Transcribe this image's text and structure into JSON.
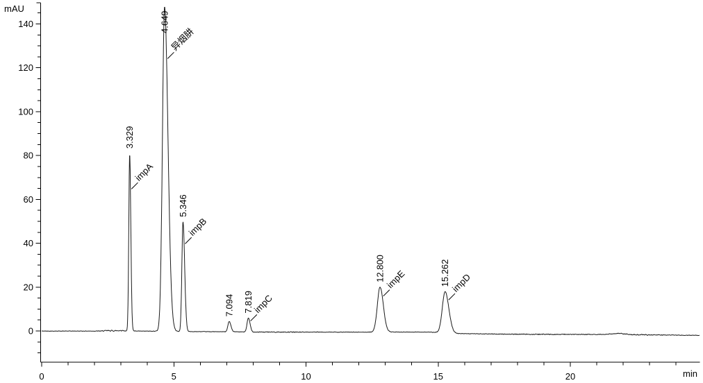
{
  "colors": {
    "background": "#ffffff",
    "axis": "#000000",
    "trace": "#1a1a1a",
    "text": "#000000"
  },
  "chart_data": {
    "type": "line",
    "title": "",
    "xlabel": "min",
    "ylabel": "mAU",
    "xlim": [
      0,
      24.9
    ],
    "ylim": [
      -14.2,
      149.6
    ],
    "xticks": [
      0,
      5,
      10,
      15,
      20
    ],
    "yticks": [
      0,
      20,
      40,
      60,
      80,
      100,
      120,
      140
    ],
    "xtick_minor_step": 1,
    "ytick_minor_step": 5,
    "grid": false,
    "legend": "none",
    "peaks": [
      {
        "rt": 3.329,
        "rt_label": "3.329",
        "name": "impA",
        "height": 81,
        "sigma": 0.033,
        "tail": 1.3
      },
      {
        "rt": 4.649,
        "rt_label": "4.649",
        "name": "异烟肼",
        "height": 148,
        "sigma": 0.08,
        "tail": 1.6
      },
      {
        "rt": 5.346,
        "rt_label": "5.346",
        "name": "impB",
        "height": 50,
        "sigma": 0.042,
        "tail": 1.5
      },
      {
        "rt": 7.094,
        "rt_label": "7.094",
        "name": "",
        "height": 4.7,
        "sigma": 0.05,
        "tail": 1.3
      },
      {
        "rt": 7.819,
        "rt_label": "7.819",
        "name": "impC",
        "height": 6.3,
        "sigma": 0.05,
        "tail": 1.3
      },
      {
        "rt": 12.8,
        "rt_label": "12.800",
        "name": "impE",
        "height": 20.5,
        "sigma": 0.1,
        "tail": 1.25
      },
      {
        "rt": 15.262,
        "rt_label": "15.262",
        "name": "impD",
        "height": 18.8,
        "sigma": 0.105,
        "tail": 1.35
      }
    ],
    "baseline_points": [
      [
        0,
        -0.05
      ],
      [
        2.2,
        -0.05
      ],
      [
        2.5,
        0.15
      ],
      [
        2.8,
        0.1
      ],
      [
        3.05,
        0.25
      ],
      [
        3.2,
        -0.05
      ],
      [
        4.4,
        -0.1
      ],
      [
        5.7,
        -0.3
      ],
      [
        6.9,
        -0.35
      ],
      [
        8,
        -0.5
      ],
      [
        12,
        -0.55
      ],
      [
        13.4,
        -0.5
      ],
      [
        14.6,
        -0.5
      ],
      [
        15.8,
        -1.2
      ],
      [
        18,
        -1.5
      ],
      [
        21.2,
        -1.6
      ],
      [
        21.8,
        -1.1
      ],
      [
        22.4,
        -1.7
      ],
      [
        24.9,
        -2.0
      ]
    ],
    "noise_amplitude": 0.13
  }
}
